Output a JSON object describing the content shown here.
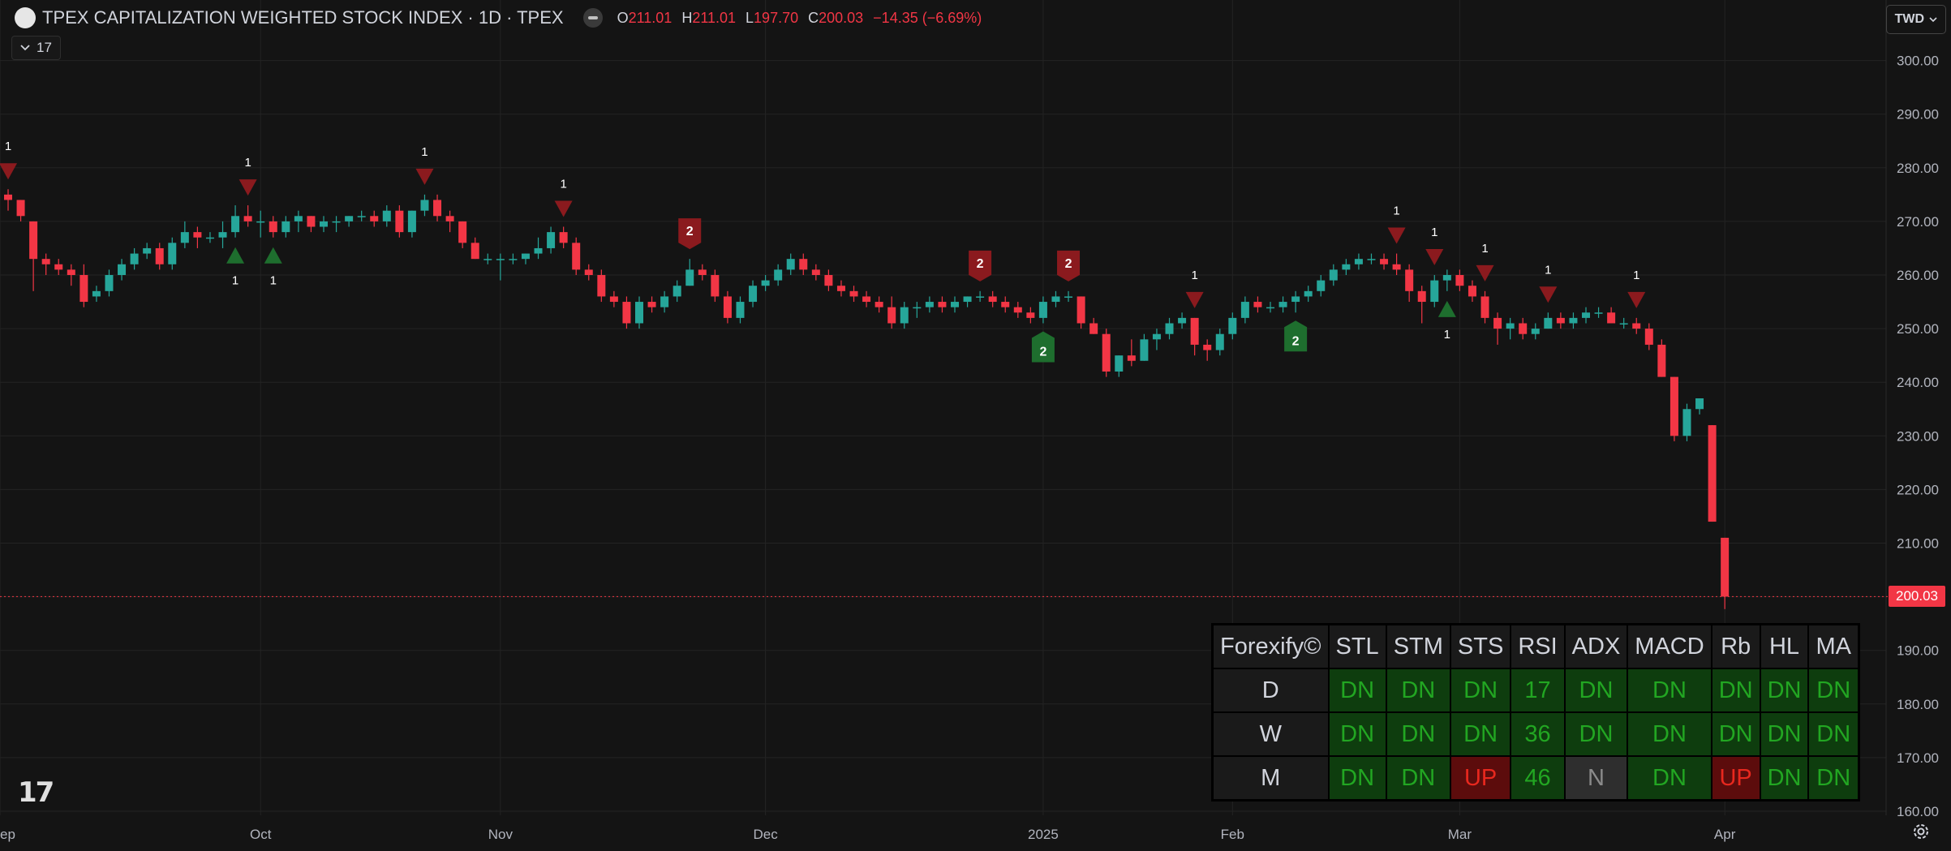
{
  "header": {
    "title": "TPEX CAPITALIZATION WEIGHTED STOCK INDEX · 1D · TPEX",
    "ohlc": [
      {
        "k": "O",
        "v": "211.01"
      },
      {
        "k": "H",
        "v": "211.01"
      },
      {
        "k": "L",
        "v": "197.70"
      },
      {
        "k": "C",
        "v": "200.03"
      }
    ],
    "change": "−14.35 (−6.69%)",
    "indicator_count": "17",
    "currency": "TWD"
  },
  "colors": {
    "up": "#26a69a",
    "down": "#f23645",
    "background": "#141414",
    "grid": "#232323",
    "signal_green": "#1e6e2e",
    "signal_red": "#8b1a1e"
  },
  "chart_data": {
    "type": "candlestick",
    "symbol": "TPEX CAPITALIZATION WEIGHTED STOCK INDEX",
    "interval": "1D",
    "y_ticks": [
      160,
      170,
      180,
      190,
      200,
      210,
      220,
      230,
      240,
      250,
      260,
      270,
      280,
      290,
      300
    ],
    "y_tick_labels": [
      "160.00",
      "170.00",
      "180.00",
      "190.00",
      "200.00",
      "210.00",
      "220.00",
      "230.00",
      "240.00",
      "250.00",
      "260.00",
      "270.00",
      "280.00",
      "290.00",
      "300.00"
    ],
    "ylim": [
      158,
      304
    ],
    "x_labels": [
      {
        "label": "ep",
        "index": 0
      },
      {
        "label": "Oct",
        "index": 20
      },
      {
        "label": "Nov",
        "index": 39
      },
      {
        "label": "Dec",
        "index": 60
      },
      {
        "label": "2025",
        "index": 82
      },
      {
        "label": "Feb",
        "index": 97
      },
      {
        "label": "Mar",
        "index": 115
      },
      {
        "label": "Apr",
        "index": 136
      }
    ],
    "last_price": "200.03",
    "candles": [
      [
        275,
        276,
        272,
        274
      ],
      [
        274,
        274,
        270,
        271
      ],
      [
        270,
        270,
        257,
        263
      ],
      [
        263,
        264,
        260,
        262
      ],
      [
        262,
        263,
        260,
        261
      ],
      [
        261,
        262,
        258,
        260
      ],
      [
        260,
        262,
        254,
        255
      ],
      [
        256,
        258,
        255,
        257
      ],
      [
        257,
        261,
        256,
        260
      ],
      [
        260,
        263,
        259,
        262
      ],
      [
        262,
        265,
        261,
        264
      ],
      [
        264,
        266,
        263,
        265
      ],
      [
        265,
        266,
        261,
        262
      ],
      [
        262,
        267,
        261,
        266
      ],
      [
        266,
        270,
        265,
        268
      ],
      [
        268,
        269,
        265,
        267
      ],
      [
        267,
        268,
        266,
        267
      ],
      [
        267,
        270,
        265,
        268
      ],
      [
        268,
        273,
        267,
        271
      ],
      [
        271,
        273,
        269,
        270
      ],
      [
        270,
        272,
        267,
        270
      ],
      [
        270,
        271,
        267,
        268
      ],
      [
        268,
        271,
        267,
        270
      ],
      [
        270,
        272,
        268,
        271
      ],
      [
        271,
        271,
        268,
        269
      ],
      [
        269,
        271,
        268,
        270
      ],
      [
        270,
        271,
        268,
        270
      ],
      [
        270,
        271,
        269,
        271
      ],
      [
        271,
        272,
        270,
        271
      ],
      [
        271,
        272,
        269,
        270
      ],
      [
        270,
        273,
        269,
        272
      ],
      [
        272,
        273,
        267,
        268
      ],
      [
        268,
        272,
        267,
        272
      ],
      [
        272,
        275,
        271,
        274
      ],
      [
        274,
        275,
        270,
        271
      ],
      [
        271,
        272,
        268,
        270
      ],
      [
        270,
        270,
        265,
        266
      ],
      [
        266,
        267,
        263,
        263
      ],
      [
        263,
        264,
        262,
        263
      ],
      [
        263,
        264,
        259,
        263
      ],
      [
        263,
        264,
        262,
        263
      ],
      [
        263,
        264,
        262,
        264
      ],
      [
        264,
        267,
        263,
        265
      ],
      [
        265,
        269,
        264,
        268
      ],
      [
        268,
        269,
        265,
        266
      ],
      [
        266,
        267,
        260,
        261
      ],
      [
        261,
        262,
        259,
        260
      ],
      [
        260,
        261,
        255,
        256
      ],
      [
        256,
        257,
        254,
        255
      ],
      [
        255,
        256,
        250,
        251
      ],
      [
        251,
        256,
        250,
        255
      ],
      [
        255,
        256,
        253,
        254
      ],
      [
        254,
        257,
        253,
        256
      ],
      [
        256,
        259,
        255,
        258
      ],
      [
        258,
        263,
        258,
        261
      ],
      [
        261,
        262,
        259,
        260
      ],
      [
        260,
        261,
        255,
        256
      ],
      [
        256,
        257,
        251,
        252
      ],
      [
        252,
        256,
        251,
        255
      ],
      [
        255,
        259,
        254,
        258
      ],
      [
        258,
        260,
        257,
        259
      ],
      [
        259,
        262,
        258,
        261
      ],
      [
        261,
        264,
        260,
        263
      ],
      [
        263,
        264,
        260,
        261
      ],
      [
        261,
        262,
        259,
        260
      ],
      [
        260,
        261,
        257,
        258
      ],
      [
        258,
        259,
        256,
        257
      ],
      [
        257,
        258,
        255,
        256
      ],
      [
        256,
        257,
        254,
        255
      ],
      [
        255,
        256,
        253,
        254
      ],
      [
        254,
        256,
        250,
        251
      ],
      [
        251,
        255,
        250,
        254
      ],
      [
        254,
        255,
        252,
        254
      ],
      [
        254,
        256,
        253,
        255
      ],
      [
        255,
        256,
        253,
        254
      ],
      [
        254,
        256,
        253,
        255
      ],
      [
        255,
        256,
        254,
        256
      ],
      [
        256,
        257,
        255,
        256
      ],
      [
        256,
        257,
        254,
        255
      ],
      [
        255,
        256,
        253,
        254
      ],
      [
        254,
        255,
        252,
        253
      ],
      [
        253,
        254,
        251,
        252
      ],
      [
        252,
        256,
        251,
        255
      ],
      [
        255,
        257,
        254,
        256
      ],
      [
        256,
        257,
        255,
        256
      ],
      [
        256,
        256,
        250,
        251
      ],
      [
        251,
        252,
        249,
        249
      ],
      [
        249,
        250,
        241,
        242
      ],
      [
        242,
        245,
        241,
        245
      ],
      [
        245,
        248,
        243,
        244
      ],
      [
        244,
        249,
        244,
        248
      ],
      [
        248,
        250,
        246,
        249
      ],
      [
        249,
        252,
        248,
        251
      ],
      [
        251,
        253,
        250,
        252
      ],
      [
        252,
        252,
        245,
        247
      ],
      [
        247,
        248,
        244,
        246
      ],
      [
        246,
        250,
        245,
        249
      ],
      [
        249,
        253,
        248,
        252
      ],
      [
        252,
        256,
        251,
        255
      ],
      [
        255,
        256,
        253,
        254
      ],
      [
        254,
        255,
        253,
        254
      ],
      [
        254,
        256,
        253,
        255
      ],
      [
        255,
        257,
        253,
        256
      ],
      [
        256,
        258,
        255,
        257
      ],
      [
        257,
        260,
        256,
        259
      ],
      [
        259,
        262,
        258,
        261
      ],
      [
        261,
        263,
        260,
        262
      ],
      [
        262,
        264,
        261,
        263
      ],
      [
        263,
        264,
        262,
        263
      ],
      [
        263,
        264,
        261,
        262
      ],
      [
        262,
        264,
        260,
        261
      ],
      [
        261,
        262,
        255,
        257
      ],
      [
        257,
        258,
        251,
        255
      ],
      [
        255,
        260,
        254,
        259
      ],
      [
        259,
        261,
        257,
        260
      ],
      [
        260,
        261,
        257,
        258
      ],
      [
        258,
        259,
        255,
        256
      ],
      [
        256,
        257,
        251,
        252
      ],
      [
        252,
        253,
        247,
        250
      ],
      [
        250,
        252,
        248,
        251
      ],
      [
        251,
        252,
        248,
        249
      ],
      [
        249,
        251,
        248,
        250
      ],
      [
        250,
        253,
        250,
        252
      ],
      [
        252,
        253,
        250,
        251
      ],
      [
        251,
        253,
        250,
        252
      ],
      [
        252,
        254,
        251,
        253
      ],
      [
        253,
        254,
        252,
        253
      ],
      [
        253,
        254,
        251,
        251
      ],
      [
        251,
        252,
        250,
        251
      ],
      [
        251,
        252,
        249,
        250
      ],
      [
        250,
        251,
        246,
        247
      ],
      [
        247,
        248,
        241,
        241
      ],
      [
        241,
        241,
        229,
        230
      ],
      [
        230,
        236,
        229,
        235
      ],
      [
        235,
        237,
        234,
        237
      ],
      [
        232,
        232,
        214,
        214
      ],
      [
        211,
        211,
        197.7,
        200.03
      ]
    ],
    "signals": [
      {
        "index": 0,
        "dir": "down",
        "label": "1"
      },
      {
        "index": 18,
        "dir": "up",
        "label": "1"
      },
      {
        "index": 19,
        "dir": "down",
        "label": "1"
      },
      {
        "index": 21,
        "dir": "up",
        "label": "1"
      },
      {
        "index": 33,
        "dir": "down",
        "label": "1"
      },
      {
        "index": 44,
        "dir": "down",
        "label": "1"
      },
      {
        "index": 54,
        "dir": "down",
        "label": "2",
        "boxed": true
      },
      {
        "index": 77,
        "dir": "down",
        "label": "2",
        "boxed": true
      },
      {
        "index": 82,
        "dir": "up",
        "label": "2",
        "boxed": true
      },
      {
        "index": 84,
        "dir": "down",
        "label": "2",
        "boxed": true
      },
      {
        "index": 94,
        "dir": "down",
        "label": "1"
      },
      {
        "index": 102,
        "dir": "up",
        "label": "2",
        "boxed": true
      },
      {
        "index": 110,
        "dir": "down",
        "label": "1"
      },
      {
        "index": 113,
        "dir": "down",
        "label": "1"
      },
      {
        "index": 114,
        "dir": "up",
        "label": "1"
      },
      {
        "index": 117,
        "dir": "down",
        "label": "1"
      },
      {
        "index": 122,
        "dir": "down",
        "label": "1"
      },
      {
        "index": 129,
        "dir": "down",
        "label": "1"
      }
    ]
  },
  "table": {
    "title": "Forexify©",
    "headers": [
      "STL",
      "STM",
      "STS",
      "RSI",
      "ADX",
      "MACD",
      "Rb",
      "HL",
      "MA"
    ],
    "rows": [
      {
        "label": "D",
        "cells": [
          {
            "v": "DN",
            "s": "dn"
          },
          {
            "v": "DN",
            "s": "dn"
          },
          {
            "v": "DN",
            "s": "dn"
          },
          {
            "v": "17",
            "s": "dn"
          },
          {
            "v": "DN",
            "s": "dn"
          },
          {
            "v": "DN",
            "s": "dn"
          },
          {
            "v": "DN",
            "s": "dn"
          },
          {
            "v": "DN",
            "s": "dn"
          },
          {
            "v": "DN",
            "s": "dn"
          }
        ]
      },
      {
        "label": "W",
        "cells": [
          {
            "v": "DN",
            "s": "dn"
          },
          {
            "v": "DN",
            "s": "dn"
          },
          {
            "v": "DN",
            "s": "dn"
          },
          {
            "v": "36",
            "s": "dn"
          },
          {
            "v": "DN",
            "s": "dn"
          },
          {
            "v": "DN",
            "s": "dn"
          },
          {
            "v": "DN",
            "s": "dn"
          },
          {
            "v": "DN",
            "s": "dn"
          },
          {
            "v": "DN",
            "s": "dn"
          }
        ]
      },
      {
        "label": "M",
        "cells": [
          {
            "v": "DN",
            "s": "dn"
          },
          {
            "v": "DN",
            "s": "dn"
          },
          {
            "v": "UP",
            "s": "up"
          },
          {
            "v": "46",
            "s": "dn"
          },
          {
            "v": "N",
            "s": "n"
          },
          {
            "v": "DN",
            "s": "dn"
          },
          {
            "v": "UP",
            "s": "up"
          },
          {
            "v": "DN",
            "s": "dn"
          },
          {
            "v": "DN",
            "s": "dn"
          }
        ]
      }
    ]
  },
  "icons": {
    "logo": "tradingview-logo-icon",
    "settings": "gear-icon"
  }
}
